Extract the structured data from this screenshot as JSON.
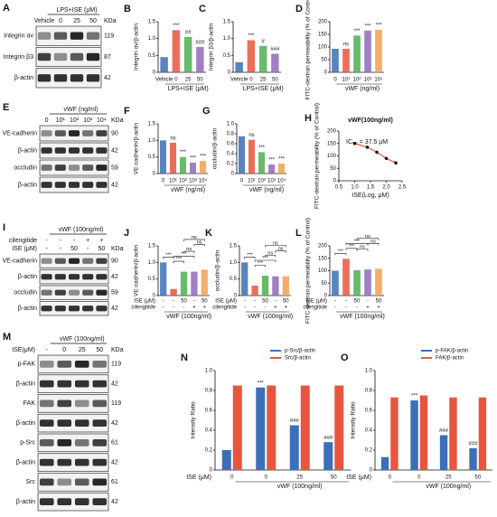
{
  "chart_data": [
    {
      "type": "bar",
      "panel": "B",
      "ylabel": "Integrin αv/β-actin",
      "xlabel": "LPS+ISE (μM)",
      "categories": [
        "Vehicle",
        "0",
        "25",
        "50"
      ],
      "values": [
        0.45,
        1.25,
        1.05,
        0.75
      ],
      "colors": [
        "#3b6fb6",
        "#e8553e",
        "#4caf50",
        "#8e6bb8"
      ],
      "annotations": [
        null,
        "***",
        "##",
        "###"
      ],
      "ylim": [
        0,
        1.5
      ],
      "yticks": [
        0,
        0.5,
        {
          "value": 1.0,
          "label": "1.0"
        },
        1.5
      ]
    },
    {
      "type": "bar",
      "panel": "C",
      "ylabel": "Integrin β3/β-actin",
      "xlabel": "LPS+ISE (μM)",
      "categories": [
        "Vehicle",
        "0",
        "25",
        "50"
      ],
      "values": [
        0.3,
        0.95,
        0.78,
        0.55
      ],
      "colors": [
        "#3b6fb6",
        "#e8553e",
        "#4caf50",
        "#8e6bb8"
      ],
      "annotations": [
        null,
        "***",
        "#",
        "###"
      ],
      "ylim": [
        0,
        1.5
      ],
      "yticks": [
        0,
        0.5,
        {
          "value": 1.0,
          "label": "1.0"
        },
        1.5
      ]
    },
    {
      "type": "bar",
      "panel": "D",
      "ylabel": "FITC-dextran permeability (% of Control)",
      "xlabel": "vWF (ng/ml)",
      "categories": [
        "0",
        "10¹",
        "10²",
        "10³",
        "10⁴"
      ],
      "values": [
        93,
        93,
        145,
        165,
        168
      ],
      "colors": [
        "#3b6fb6",
        "#e8553e",
        "#4caf50",
        "#8e6bb8",
        "#f0a050"
      ],
      "annotations": [
        null,
        "ns",
        "***",
        "***",
        "***"
      ],
      "ylim": [
        0,
        200
      ],
      "yticks": [
        0,
        50,
        100,
        150,
        200
      ]
    },
    {
      "type": "bar",
      "panel": "F",
      "ylabel": "VE-cadherin/β-actin",
      "xlabel": "vWF (ng/ml)",
      "categories": [
        "0",
        "10¹",
        "10²",
        "10³",
        "10⁴"
      ],
      "values": [
        1.0,
        0.93,
        0.5,
        0.33,
        0.38
      ],
      "colors": [
        "#3b6fb6",
        "#e8553e",
        "#4caf50",
        "#8e6bb8",
        "#f0a050"
      ],
      "annotations": [
        null,
        "ns",
        "***",
        "***",
        "***"
      ],
      "ylim": [
        0,
        1.5
      ],
      "yticks": [
        0,
        0.5,
        {
          "value": 1.0,
          "label": "1.0"
        },
        1.5
      ]
    },
    {
      "type": "bar",
      "panel": "G",
      "ylabel": "occludin/β-actin",
      "xlabel": "vWF (ng/ml)",
      "categories": [
        "0",
        "10¹",
        "10²",
        "10³",
        "10⁴"
      ],
      "values": [
        0.75,
        0.68,
        0.43,
        0.18,
        0.2
      ],
      "colors": [
        "#3b6fb6",
        "#e8553e",
        "#4caf50",
        "#8e6bb8",
        "#f0a050"
      ],
      "annotations": [
        null,
        "ns",
        "***",
        "***",
        "***"
      ],
      "ylim": [
        0,
        1.0
      ],
      "yticks": [
        0,
        0.2,
        0.4,
        0.6,
        0.8,
        {
          "value": 1.0,
          "label": "1.0"
        }
      ]
    },
    {
      "type": "line",
      "panel": "H",
      "title": "vWF(100ng/ml)",
      "ylabel": "FITC-dextran permeability (% of Control)",
      "xlabel": "ISE(Log, μM)",
      "annotation": "IC₅₀ = 37.5 μM",
      "color": "#e8553e",
      "x": [
        1.0,
        1.4,
        1.7,
        2.0,
        2.3
      ],
      "values": [
        150,
        135,
        115,
        90,
        72
      ],
      "xlim": [
        0.5,
        2.5
      ],
      "xticks": [
        0.5,
        {
          "value": 1.0,
          "label": "1.0"
        },
        1.5,
        {
          "value": 2.0,
          "label": "2.0"
        },
        2.5
      ],
      "ylim": [
        0,
        200
      ],
      "yticks": [
        0,
        50,
        100,
        150,
        200
      ]
    },
    {
      "type": "bar",
      "panel": "J",
      "ylabel": "VE-cadherin/β-actin",
      "xlabel": "vWF (100ng/ml)",
      "categories": [
        null,
        null,
        null,
        null,
        null
      ],
      "values": [
        1.0,
        0.2,
        0.72,
        0.72,
        0.78
      ],
      "xrows": [
        {
          "name": "ISE (μM)",
          "labels": [
            "-",
            "-",
            "50",
            "-",
            "50"
          ]
        },
        {
          "name": "cilengitide",
          "labels": [
            "-",
            "-",
            "-",
            "+",
            "+"
          ]
        }
      ],
      "colors": [
        "#3b6fb6",
        "#e8553e",
        "#4caf50",
        "#8e6bb8",
        "#f0a050"
      ],
      "brackets": [
        {
          "from": 0,
          "to": 1,
          "label": "***"
        },
        {
          "from": 1,
          "to": 2,
          "label": "***"
        },
        {
          "from": 1,
          "to": 3,
          "label": "***"
        },
        {
          "from": 2,
          "to": 3,
          "label": "ns"
        },
        {
          "from": 3,
          "to": 4,
          "label": "ns"
        },
        {
          "from": 2,
          "to": 4,
          "label": "ns"
        }
      ],
      "ylim": [
        0,
        1.5
      ],
      "yticks": [
        0,
        0.5,
        {
          "value": 1.0,
          "label": "1.0"
        },
        1.5
      ]
    },
    {
      "type": "bar",
      "panel": "K",
      "ylabel": "occludin/β-actin",
      "xlabel": "vWF (100ng/ml)",
      "categories": [
        null,
        null,
        null,
        null,
        null
      ],
      "values": [
        1.0,
        0.3,
        0.6,
        0.58,
        0.58
      ],
      "xrows": [
        {
          "name": "ISE (μM)",
          "labels": [
            "-",
            "-",
            "50",
            "-",
            "50"
          ]
        },
        {
          "name": "cilengitide",
          "labels": [
            "-",
            "-",
            "-",
            "+",
            "+"
          ]
        }
      ],
      "colors": [
        "#3b6fb6",
        "#e8553e",
        "#4caf50",
        "#8e6bb8",
        "#f0a050"
      ],
      "brackets": [
        {
          "from": 0,
          "to": 1,
          "label": "***"
        },
        {
          "from": 1,
          "to": 2,
          "label": "***"
        },
        {
          "from": 1,
          "to": 3,
          "label": "***"
        },
        {
          "from": 2,
          "to": 3,
          "label": "ns"
        },
        {
          "from": 3,
          "to": 4,
          "label": "ns"
        },
        {
          "from": 2,
          "to": 4,
          "label": "ns"
        }
      ],
      "ylim": [
        0,
        1.5
      ],
      "yticks": [
        0,
        0.5,
        {
          "value": 1.0,
          "label": "1.0"
        },
        1.5
      ]
    },
    {
      "type": "bar",
      "panel": "L",
      "ylabel": "FITC-dextran permeability (% of Control)",
      "xlabel": "vWF (100ng/ml)",
      "categories": [
        null,
        null,
        null,
        null,
        null
      ],
      "values": [
        100,
        148,
        102,
        105,
        108
      ],
      "xrows": [
        {
          "name": "ISE (μM)",
          "labels": [
            "-",
            "-",
            "50",
            "-",
            "50"
          ]
        },
        {
          "name": "cilengitide",
          "labels": [
            "-",
            "-",
            "-",
            "+",
            "+"
          ]
        }
      ],
      "colors": [
        "#3b6fb6",
        "#e8553e",
        "#4caf50",
        "#8e6bb8",
        "#f0a050"
      ],
      "brackets": [
        {
          "from": 0,
          "to": 1,
          "label": "***"
        },
        {
          "from": 1,
          "to": 2,
          "label": "***"
        },
        {
          "from": 1,
          "to": 3,
          "label": "***"
        },
        {
          "from": 2,
          "to": 3,
          "label": "ns"
        },
        {
          "from": 3,
          "to": 4,
          "label": "ns"
        },
        {
          "from": 2,
          "to": 4,
          "label": "ns"
        }
      ],
      "ylim": [
        0,
        200
      ],
      "yticks": [
        0,
        50,
        100,
        150,
        200
      ]
    },
    {
      "type": "bar",
      "panel": "N",
      "ylabel": "Intensity Ratio",
      "xlabel": "vWF (100ng/ml)",
      "xrow_name": "ISE (μM)",
      "categories": [
        "0",
        "0",
        "25",
        "50"
      ],
      "series": [
        {
          "name": "p-Src/β-actin",
          "color": "#3b6fb6",
          "values": [
            0.2,
            0.83,
            0.45,
            0.28
          ],
          "annotations": [
            null,
            "***",
            "###",
            "###"
          ]
        },
        {
          "name": "Src/β-actin",
          "color": "#e8553e",
          "values": [
            0.85,
            0.85,
            0.85,
            0.85
          ]
        }
      ],
      "ylim": [
        0,
        1.0
      ],
      "yticks": [
        0,
        0.2,
        0.4,
        0.6,
        0.8,
        {
          "value": 1.0,
          "label": "1.0"
        }
      ]
    },
    {
      "type": "bar",
      "panel": "O",
      "ylabel": "Intensity Ratio",
      "xlabel": "vWF (100ng/ml)",
      "xrow_name": "ISE (μM)",
      "categories": [
        "0",
        "0",
        "25",
        "50"
      ],
      "series": [
        {
          "name": "p-FAK/β-actin",
          "color": "#3b6fb6",
          "values": [
            0.13,
            0.7,
            0.35,
            0.22
          ],
          "annotations": [
            null,
            "***",
            "###",
            "###"
          ]
        },
        {
          "name": "FAK/β-actin",
          "color": "#e8553e",
          "values": [
            0.73,
            0.75,
            0.73,
            0.73
          ]
        }
      ],
      "ylim": [
        0,
        1.0
      ],
      "yticks": [
        0,
        0.2,
        0.4,
        0.6,
        0.8,
        {
          "value": 1.0,
          "label": "1.0"
        }
      ]
    }
  ],
  "blots": [
    {
      "panel": "A",
      "header": "LPS+ISE (μM)",
      "kda_label": "KDa",
      "lane_rows": [
        {
          "labels": [
            "Vehicle",
            "0",
            "25",
            "50"
          ]
        }
      ],
      "rows": [
        {
          "name": "Integrin αv",
          "kda": "119"
        },
        {
          "name": "Integrin β3",
          "kda": "87"
        },
        {
          "name": "β-actin",
          "kda": "42"
        }
      ]
    },
    {
      "panel": "E",
      "header": "vWF (ng/ml)",
      "kda_label": "KDa",
      "lane_rows": [
        {
          "labels": [
            "0",
            "10¹",
            "10²",
            "10³",
            "10⁴"
          ]
        }
      ],
      "rows": [
        {
          "name": "VE-cadherin",
          "kda": "90"
        },
        {
          "name": "β-actin",
          "kda": "42"
        },
        {
          "name": "occludin",
          "kda": "59"
        },
        {
          "name": "β-actin",
          "kda": "42"
        }
      ]
    },
    {
      "panel": "I",
      "header": "vWF (100ng/ml)",
      "kda_label": "KDa",
      "lane_rows": [
        {
          "name": "cilengitide",
          "labels": [
            "-",
            "-",
            "-",
            "+",
            "+"
          ]
        },
        {
          "name": "ISE (μM)",
          "labels": [
            "-",
            "-",
            "50",
            "-",
            "50"
          ]
        }
      ],
      "rows": [
        {
          "name": "VE-cadherin",
          "kda": "90"
        },
        {
          "name": "β-actin",
          "kda": "42"
        },
        {
          "name": "occludin",
          "kda": "59"
        },
        {
          "name": "β-actin",
          "kda": "42"
        }
      ]
    },
    {
      "panel": "M",
      "header": "vWF (100ng/ml)",
      "kda_label": "KDa",
      "lane_rows": [
        {
          "name": "ISE(μM)",
          "labels": [
            "-",
            "0",
            "25",
            "50"
          ]
        }
      ],
      "rows": [
        {
          "name": "p-FAK",
          "kda": "119"
        },
        {
          "name": "β-actin",
          "kda": "42"
        },
        {
          "name": "FAK",
          "kda": "119"
        },
        {
          "name": "β-actin",
          "kda": "42"
        },
        {
          "name": "p-Src",
          "kda": "61"
        },
        {
          "name": "β-actin",
          "kda": "42"
        },
        {
          "name": "Src",
          "kda": "61"
        },
        {
          "name": "β-actin",
          "kda": "42"
        }
      ]
    }
  ]
}
